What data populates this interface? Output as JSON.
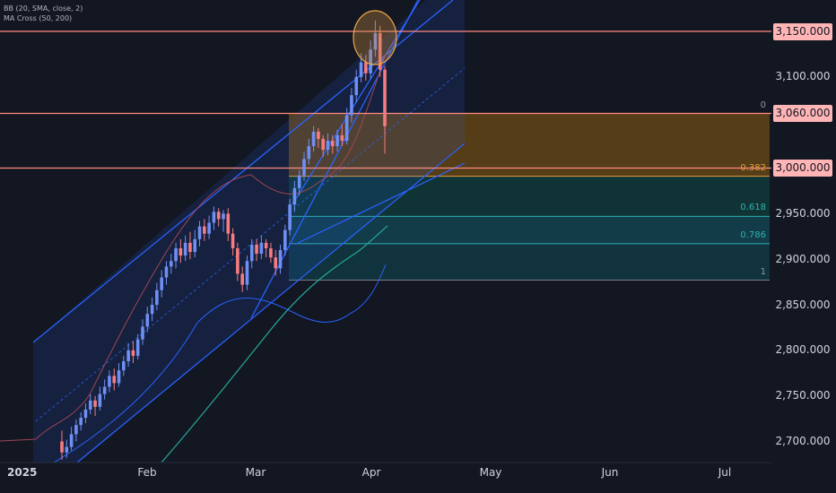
{
  "indicators": {
    "bb_label": "BB (20, SMA, close, 2)",
    "ma_label": "MA Cross (50, 200)"
  },
  "colors": {
    "background": "#131722",
    "up": "#6f8ff5",
    "down": "#f77c80",
    "channel": "#2962ff",
    "hline": "#ff8a80",
    "ma50": "#26a69a",
    "bb": "#a04455",
    "fib_orange": "#8c5c10",
    "fib_green": "#0e4d46",
    "fib_teal": "#135b68"
  },
  "chart_data": {
    "type": "candlestick",
    "y_axis": {
      "ticks": [
        "3,100.000",
        "2,950.000",
        "2,900.000",
        "2,850.000",
        "2,800.000",
        "2,750.000",
        "2,700.000"
      ],
      "ylim": [
        2670,
        3175
      ]
    },
    "x_axis": {
      "labels": [
        "2025",
        "Feb",
        "Mar",
        "Apr",
        "May",
        "Jun",
        "Jul"
      ]
    },
    "price_levels": [
      {
        "value": 3150,
        "label": "3,150.000"
      },
      {
        "value": 3060,
        "label": "3,060.000"
      },
      {
        "value": 3000,
        "label": "3,000.000"
      }
    ],
    "fib_levels": [
      {
        "label": "0",
        "value": 3060
      },
      {
        "label": "0.382",
        "value": 2991
      },
      {
        "label": "0.618",
        "value": 2947
      },
      {
        "label": "0.786",
        "value": 2917
      },
      {
        "label": "1",
        "value": 2877
      }
    ],
    "candles": [
      [
        2700,
        2688,
        2712,
        2680
      ],
      [
        2688,
        2694,
        2702,
        2682
      ],
      [
        2694,
        2708,
        2716,
        2690
      ],
      [
        2708,
        2718,
        2724,
        2700
      ],
      [
        2718,
        2726,
        2732,
        2712
      ],
      [
        2726,
        2735,
        2742,
        2720
      ],
      [
        2735,
        2745,
        2752,
        2730
      ],
      [
        2745,
        2738,
        2750,
        2728
      ],
      [
        2738,
        2752,
        2760,
        2734
      ],
      [
        2752,
        2760,
        2768,
        2746
      ],
      [
        2760,
        2772,
        2778,
        2754
      ],
      [
        2772,
        2764,
        2780,
        2756
      ],
      [
        2764,
        2778,
        2786,
        2760
      ],
      [
        2778,
        2788,
        2794,
        2772
      ],
      [
        2788,
        2800,
        2808,
        2782
      ],
      [
        2800,
        2794,
        2810,
        2786
      ],
      [
        2794,
        2812,
        2818,
        2790
      ],
      [
        2812,
        2826,
        2834,
        2806
      ],
      [
        2826,
        2840,
        2848,
        2820
      ],
      [
        2840,
        2850,
        2858,
        2832
      ],
      [
        2850,
        2866,
        2874,
        2844
      ],
      [
        2866,
        2880,
        2888,
        2858
      ],
      [
        2880,
        2892,
        2898,
        2872
      ],
      [
        2892,
        2898,
        2906,
        2884
      ],
      [
        2898,
        2912,
        2918,
        2890
      ],
      [
        2912,
        2904,
        2922,
        2896
      ],
      [
        2904,
        2918,
        2926,
        2898
      ],
      [
        2918,
        2908,
        2930,
        2900
      ],
      [
        2908,
        2922,
        2932,
        2902
      ],
      [
        2922,
        2936,
        2942,
        2914
      ],
      [
        2936,
        2928,
        2944,
        2920
      ],
      [
        2928,
        2940,
        2948,
        2922
      ],
      [
        2940,
        2952,
        2958,
        2932
      ],
      [
        2952,
        2944,
        2956,
        2936
      ],
      [
        2944,
        2950,
        2954,
        2930
      ],
      [
        2950,
        2928,
        2956,
        2920
      ],
      [
        2928,
        2912,
        2934,
        2904
      ],
      [
        2912,
        2884,
        2918,
        2876
      ],
      [
        2884,
        2872,
        2892,
        2864
      ],
      [
        2872,
        2898,
        2904,
        2866
      ],
      [
        2898,
        2916,
        2922,
        2890
      ],
      [
        2916,
        2906,
        2922,
        2898
      ],
      [
        2906,
        2918,
        2926,
        2900
      ],
      [
        2918,
        2912,
        2922,
        2902
      ],
      [
        2912,
        2902,
        2918,
        2896
      ],
      [
        2902,
        2890,
        2910,
        2882
      ],
      [
        2890,
        2910,
        2916,
        2884
      ],
      [
        2910,
        2932,
        2938,
        2904
      ],
      [
        2932,
        2960,
        2966,
        2926
      ],
      [
        2960,
        2978,
        2986,
        2952
      ],
      [
        2978,
        2992,
        2998,
        2970
      ],
      [
        2992,
        3010,
        3018,
        2986
      ],
      [
        3010,
        3024,
        3032,
        3004
      ],
      [
        3024,
        3040,
        3046,
        3018
      ],
      [
        3040,
        3032,
        3044,
        3022
      ],
      [
        3032,
        3020,
        3036,
        3012
      ],
      [
        3020,
        3030,
        3038,
        3014
      ],
      [
        3030,
        3024,
        3036,
        3016
      ],
      [
        3024,
        3036,
        3042,
        3018
      ],
      [
        3036,
        3030,
        3048,
        3024
      ],
      [
        3030,
        3058,
        3066,
        3026
      ],
      [
        3058,
        3080,
        3088,
        3050
      ],
      [
        3080,
        3100,
        3108,
        3072
      ],
      [
        3100,
        3116,
        3126,
        3094
      ],
      [
        3116,
        3104,
        3124,
        3096
      ],
      [
        3104,
        3130,
        3140,
        3098
      ],
      [
        3130,
        3148,
        3162,
        3122
      ],
      [
        3148,
        3108,
        3156,
        3100
      ],
      [
        3108,
        3046,
        3112,
        3016
      ]
    ]
  }
}
